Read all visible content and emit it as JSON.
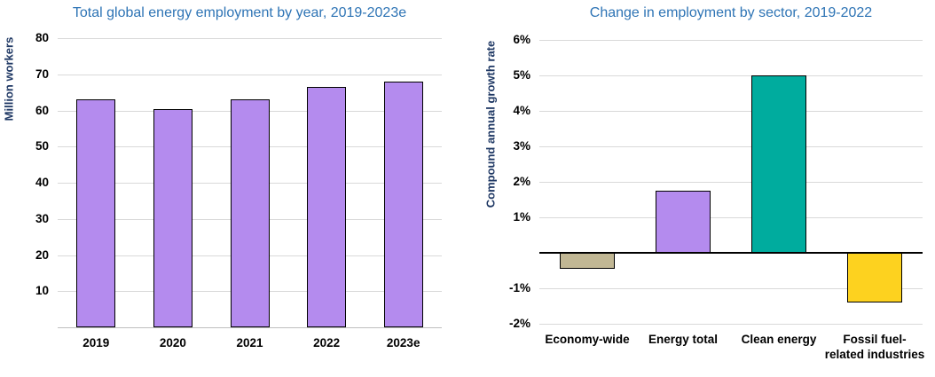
{
  "page": {
    "background": "#ffffff"
  },
  "colors": {
    "title_text": "#2e74b5",
    "axis_title_text": "#1f3864",
    "tick_text": "#000000",
    "gridline": "#d9d9d9",
    "baseline": "#bfbfbf",
    "zero_line": "#000000",
    "bar_border": "#000000",
    "purple": "#b48bee",
    "teal": "#00ac9e",
    "yellow": "#fdd21f",
    "tan": "#c1b794"
  },
  "chart_data": [
    {
      "type": "bar",
      "title": "Total global energy employment by year, 2019-2023e",
      "xlabel": "",
      "ylabel": "Million workers",
      "categories": [
        "2019",
        "2020",
        "2021",
        "2022",
        "2023e"
      ],
      "values": [
        63,
        60.5,
        63,
        66.5,
        68
      ],
      "ylim": [
        0,
        80
      ],
      "yticks": [
        80,
        70,
        60,
        50,
        40,
        30,
        20,
        10
      ],
      "tick_suffix": "",
      "bar_color": "#b48bee",
      "bar_border_color": "#000000",
      "grid": true,
      "legend": "none"
    },
    {
      "type": "bar",
      "title": "Change in employment by sector, 2019-2022",
      "xlabel": "",
      "ylabel": "Compound annual growth rate",
      "categories": [
        "Economy-wide",
        "Energy total",
        "Clean energy",
        "Fossil fuel-\nrelated industries"
      ],
      "values": [
        -0.45,
        1.75,
        5,
        -1.4
      ],
      "ylim": [
        -2,
        6
      ],
      "yticks": [
        6,
        5,
        4,
        3,
        2,
        1,
        -1,
        -2
      ],
      "tick_suffix": "%",
      "bar_colors": [
        "#c1b794",
        "#b48bee",
        "#00ac9e",
        "#fdd21f"
      ],
      "bar_border_color": "#000000",
      "grid": true,
      "legend": "none"
    }
  ]
}
